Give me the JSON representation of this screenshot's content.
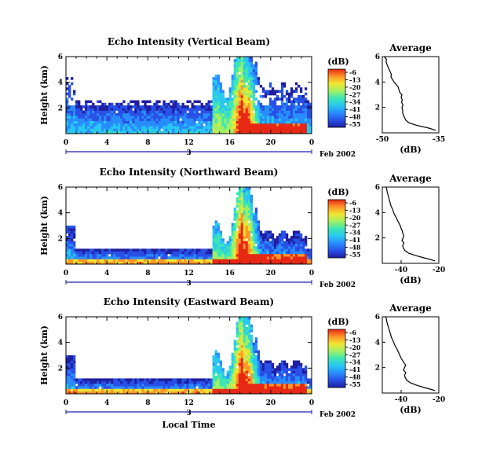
{
  "chart_data": [
    {
      "type": "heatmap",
      "title": "Echo Intensity (Vertical Beam)",
      "ylabel": "Height (km)",
      "yticks": [
        "6",
        "4",
        "2"
      ],
      "ylim": [
        0,
        6
      ],
      "xticks": [
        "0",
        "4",
        "8",
        "12",
        "16",
        "20",
        "0"
      ],
      "xlim": [
        0,
        24
      ],
      "day_label": "3",
      "date_label": "Feb 2002",
      "colorbar": {
        "unit": "(dB)",
        "ticks": [
          "-6",
          "-13",
          "-20",
          "-27",
          "-34",
          "-41",
          "-48",
          "-55"
        ]
      },
      "profile": {
        "title": "Average",
        "xlabel": "(dB)",
        "xticks": [
          "-50",
          "-35"
        ],
        "xlim": [
          -50,
          -35
        ],
        "yticks": [
          "6",
          "4",
          "2"
        ],
        "height_km": [
          0.2,
          0.4,
          0.6,
          0.8,
          1.0,
          1.2,
          1.4,
          1.6,
          1.8,
          2.0,
          2.2,
          2.4,
          2.6,
          2.8,
          3.0,
          3.2,
          3.4,
          3.6,
          3.8,
          4.0,
          4.2,
          4.4,
          4.6,
          4.8,
          5.0,
          5.2,
          5.4,
          5.6,
          5.8,
          6.0
        ],
        "mean_db": [
          -35.8,
          -38.0,
          -41.0,
          -43.0,
          -43.8,
          -44.1,
          -44.4,
          -44.6,
          -44.6,
          -44.8,
          -44.5,
          -44.9,
          -44.7,
          -45.0,
          -44.8,
          -45.4,
          -45.6,
          -45.8,
          -46.3,
          -46.9,
          -47.3,
          -47.7,
          -47.6,
          -47.9,
          -48.2,
          -48.5,
          -48.8,
          -49.0,
          -48.9,
          -49.5
        ]
      }
    },
    {
      "type": "heatmap",
      "title": "Echo Intensity (Northward Beam)",
      "ylabel": "Height (km)",
      "yticks": [
        "6",
        "4",
        "2"
      ],
      "ylim": [
        0,
        6
      ],
      "xticks": [
        "0",
        "4",
        "8",
        "12",
        "16",
        "20",
        "0"
      ],
      "xlim": [
        0,
        24
      ],
      "day_label": "3",
      "date_label": "Feb 2002",
      "colorbar": {
        "unit": "(dB)",
        "ticks": [
          "-6",
          "-13",
          "-20",
          "-27",
          "-34",
          "-41",
          "-48",
          "-55"
        ]
      },
      "profile": {
        "title": "Average",
        "xlabel": "(dB)",
        "xticks": [
          "-40",
          "-20"
        ],
        "xlim": [
          -50,
          -20
        ],
        "yticks": [
          "6",
          "4",
          "2"
        ],
        "height_km": [
          0.2,
          0.4,
          0.6,
          0.8,
          1.0,
          1.2,
          1.4,
          1.6,
          1.8,
          2.0,
          2.2,
          2.4,
          2.6,
          2.8,
          3.0,
          3.2,
          3.4,
          3.6,
          3.8,
          4.0,
          4.2,
          4.4,
          4.6,
          4.8,
          5.0,
          5.2,
          5.4,
          5.6,
          5.8,
          6.0
        ],
        "mean_db": [
          -22.0,
          -27.0,
          -32.0,
          -36.0,
          -38.0,
          -38.8,
          -39.2,
          -38.5,
          -39.6,
          -39.0,
          -38.6,
          -39.2,
          -39.5,
          -40.2,
          -40.6,
          -41.3,
          -42.0,
          -42.6,
          -43.4,
          -44.0,
          -44.4,
          -45.0,
          -45.6,
          -45.9,
          -46.3,
          -46.6,
          -47.0,
          -47.4,
          -47.6,
          -48.0
        ]
      }
    },
    {
      "type": "heatmap",
      "title": "Echo Intensity (Eastward Beam)",
      "ylabel": "Height (km)",
      "yticks": [
        "6",
        "4",
        "2"
      ],
      "ylim": [
        0,
        6
      ],
      "xticks": [
        "0",
        "4",
        "8",
        "12",
        "16",
        "20",
        "0"
      ],
      "xlim": [
        0,
        24
      ],
      "day_label": "3",
      "date_label": "Feb 2002",
      "xlabel": "Local Time",
      "colorbar": {
        "unit": "(dB)",
        "ticks": [
          "-6",
          "-13",
          "-20",
          "-27",
          "-34",
          "-41",
          "-48",
          "-55"
        ]
      },
      "profile": {
        "title": "Average",
        "xlabel": "(dB)",
        "xticks": [
          "-40",
          "-20"
        ],
        "xlim": [
          -50,
          -20
        ],
        "yticks": [
          "6",
          "4",
          "2"
        ],
        "height_km": [
          0.2,
          0.4,
          0.6,
          0.8,
          1.0,
          1.2,
          1.4,
          1.6,
          1.8,
          2.0,
          2.2,
          2.4,
          2.6,
          2.8,
          3.0,
          3.2,
          3.4,
          3.6,
          3.8,
          4.0,
          4.2,
          4.4,
          4.6,
          4.8,
          5.0,
          5.2,
          5.4,
          5.6,
          5.8,
          6.0
        ],
        "mean_db": [
          -22.0,
          -27.0,
          -31.5,
          -35.0,
          -37.0,
          -37.8,
          -38.2,
          -37.5,
          -38.8,
          -38.2,
          -37.6,
          -38.6,
          -39.4,
          -40.2,
          -40.8,
          -41.4,
          -42.0,
          -42.8,
          -43.4,
          -44.0,
          -44.6,
          -45.2,
          -45.6,
          -46.0,
          -46.4,
          -46.8,
          -47.2,
          -47.6,
          -47.8,
          -48.2
        ]
      }
    }
  ],
  "colors": {
    "colormap": [
      "#1e1ea0",
      "#2850e6",
      "#288cff",
      "#28c8f0",
      "#3ce6b4",
      "#a0f064",
      "#f0e632",
      "#ff9628",
      "#e62814"
    ],
    "axis_line": "#000000",
    "time_bar": "#1e1eb4",
    "profile_line": "#000000"
  }
}
